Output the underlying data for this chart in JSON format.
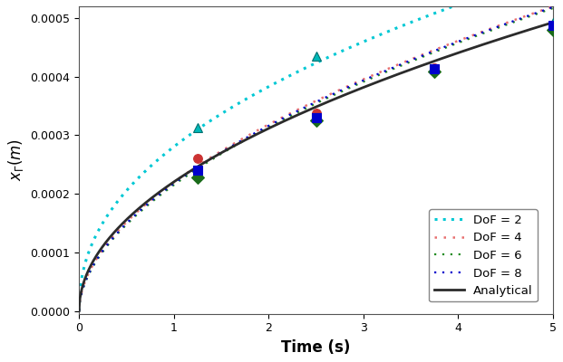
{
  "title": "",
  "xlabel": "Time (s)",
  "xlim": [
    0,
    5
  ],
  "ylim": [
    -5e-06,
    0.00052
  ],
  "yticks": [
    0.0,
    0.0001,
    0.0002,
    0.0003,
    0.0004,
    0.0005
  ],
  "xticks": [
    0,
    1,
    2,
    3,
    4,
    5
  ],
  "background_color": "#ffffff",
  "analytical": {
    "color": "#2b2b2b",
    "linestyle": "-",
    "linewidth": 2.0,
    "label": "Analytical",
    "A": 0.0002203
  },
  "dof2": {
    "color": "#00c8d4",
    "linestyle": ":",
    "linewidth": 2.2,
    "label": "DoF = 2",
    "marker": "^",
    "markersize": 7,
    "markerfacecolor": "#00b8b8",
    "markeredgecolor": "#007070",
    "marker_times": [
      1.25,
      2.5,
      5.0
    ],
    "marker_vals": [
      0.000313,
      0.000435,
      0.000492
    ],
    "a": 0.0002803,
    "p": 0.45
  },
  "dof4": {
    "color": "#e87070",
    "linestyle": ":",
    "linewidth": 1.8,
    "label": "DoF = 4",
    "marker": "o",
    "markersize": 7,
    "markerfacecolor": "#cc3333",
    "markeredgecolor": "#cc3333",
    "marker_times": [
      1.25,
      2.5,
      3.75,
      5.0
    ],
    "marker_vals": [
      0.00026,
      0.000338,
      0.000415,
      0.000488
    ],
    "a": 0.0002197,
    "p": 0.535
  },
  "dof6": {
    "color": "#228B22",
    "linestyle": ":",
    "linewidth": 1.6,
    "label": "DoF = 6",
    "marker": "D",
    "markersize": 7,
    "markerfacecolor": "#1a6b1a",
    "markeredgecolor": "#1a6b1a",
    "marker_times": [
      1.25,
      2.5,
      3.75,
      5.0
    ],
    "marker_vals": [
      0.000228,
      0.000325,
      0.000408,
      0.00048
    ],
    "a": 0.000215,
    "p": 0.545
  },
  "dof8": {
    "color": "#0000cc",
    "linestyle": ":",
    "linewidth": 1.6,
    "label": "DoF = 8",
    "marker": "s",
    "markersize": 7,
    "markerfacecolor": "#0000cc",
    "markeredgecolor": "#0000cc",
    "marker_times": [
      1.25,
      2.5,
      3.75,
      5.0
    ],
    "marker_vals": [
      0.00024,
      0.00033,
      0.000413,
      0.000487
    ],
    "a": 0.0002175,
    "p": 0.54
  }
}
